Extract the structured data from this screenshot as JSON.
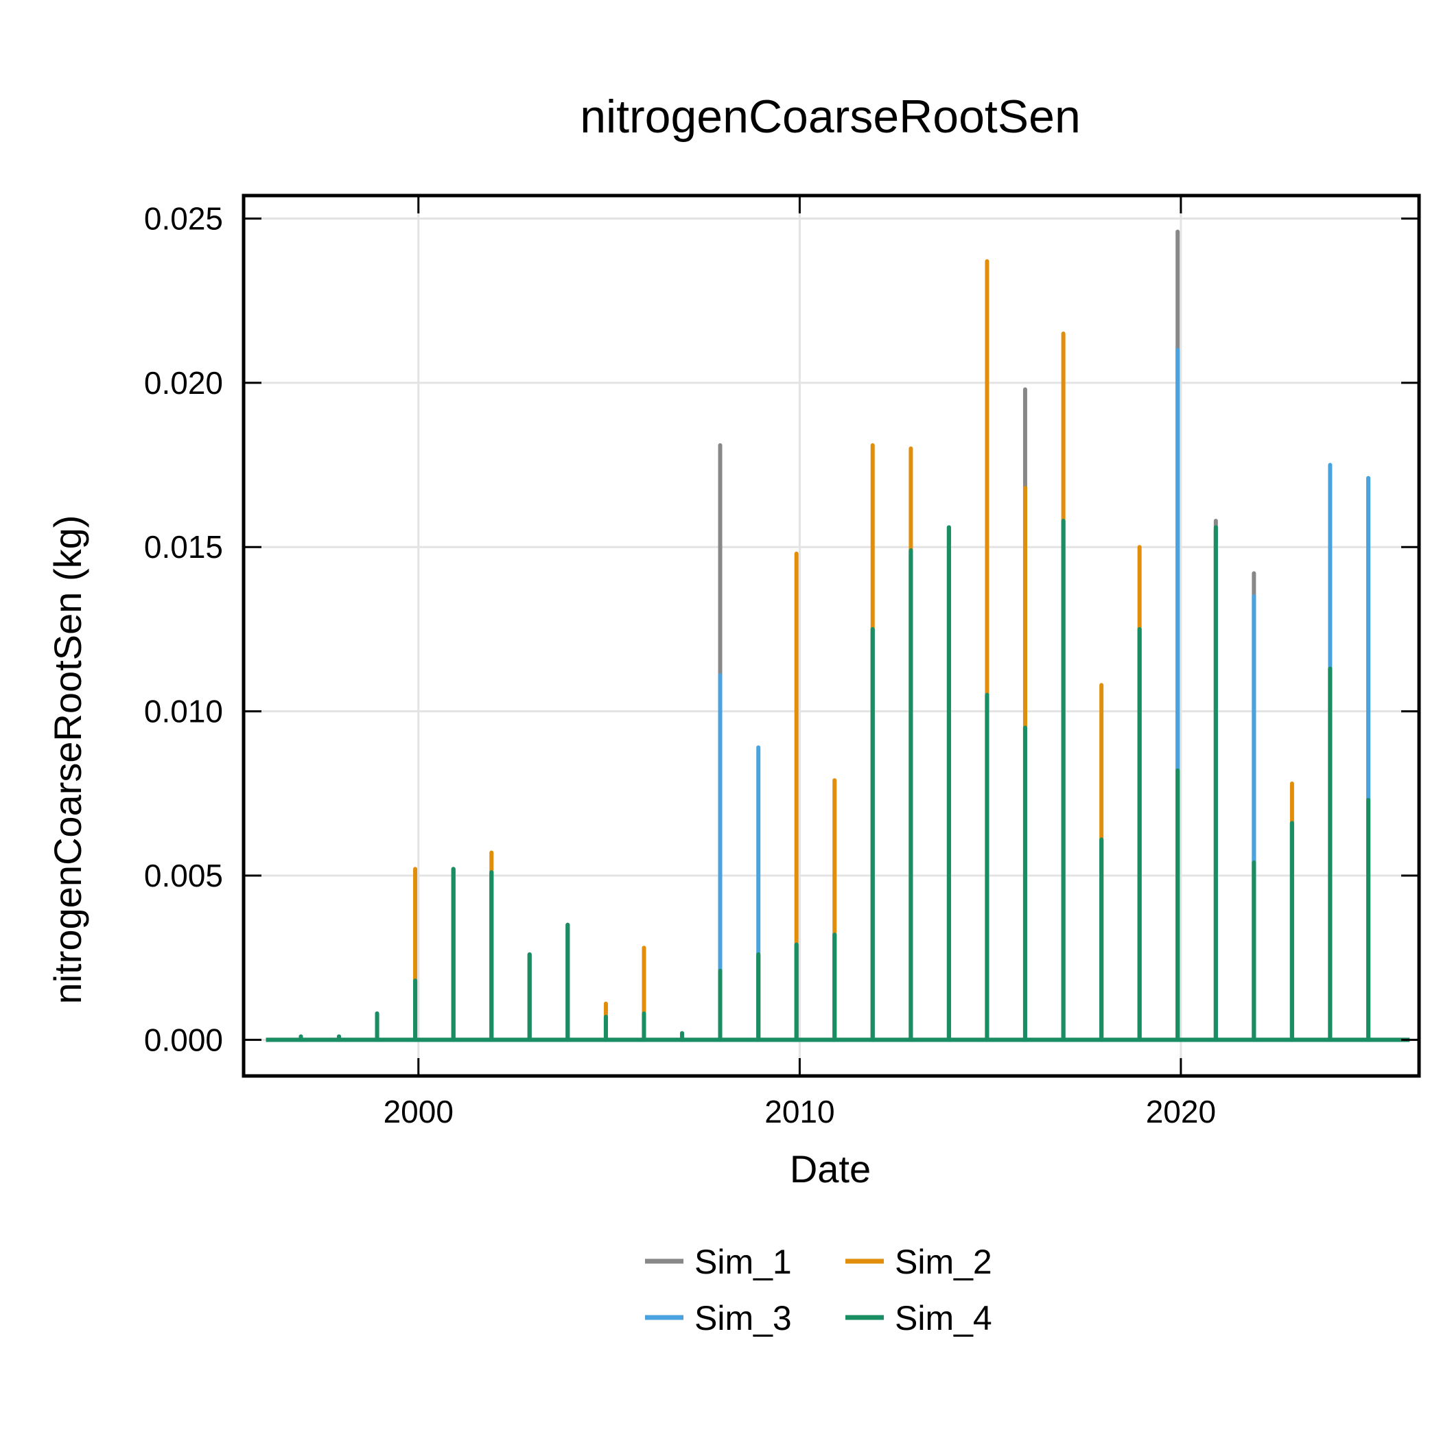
{
  "chart_data": {
    "type": "line",
    "title": "nitrogenCoarseRootSen",
    "xlabel": "Date",
    "ylabel": "nitrogenCoarseRootSen (kg)",
    "xlim": [
      "1995-06-01",
      "2026-04-01"
    ],
    "ylim": [
      -0.0011,
      0.0257
    ],
    "x_ticks": [
      "2000",
      "2010",
      "2020"
    ],
    "x_tick_dates": [
      "2000-01-01",
      "2010-01-01",
      "2020-01-01"
    ],
    "y_ticks": [
      "0.000",
      "0.005",
      "0.010",
      "0.015",
      "0.020",
      "0.025"
    ],
    "y_tick_values": [
      0,
      0.005,
      0.01,
      0.015,
      0.02,
      0.025
    ],
    "grid": true,
    "legend": {
      "position": "bottom",
      "columns": 2
    },
    "x_range": [
      "1996-01-01",
      "2025-12-31"
    ],
    "dates": [
      "1996-12-01",
      "1997-12-01",
      "1998-12-01",
      "1999-12-01",
      "2000-12-01",
      "2001-12-01",
      "2002-12-01",
      "2003-12-01",
      "2004-12-01",
      "2005-12-01",
      "2006-12-01",
      "2007-12-01",
      "2008-12-01",
      "2009-12-01",
      "2010-12-01",
      "2011-12-01",
      "2012-12-01",
      "2013-12-01",
      "2014-12-01",
      "2015-12-01",
      "2016-12-01",
      "2017-12-01",
      "2018-12-01",
      "2019-12-01",
      "2020-12-01",
      "2021-12-01",
      "2022-12-01",
      "2023-12-01",
      "2024-12-01"
    ],
    "series": [
      {
        "name": "Sim_1",
        "color": "#888888",
        "values": [
          0.0001,
          0.0001,
          0.0008,
          0.0018,
          0.0052,
          0.0051,
          0.0026,
          0.0035,
          0.0007,
          0.0008,
          0.0002,
          0.0181,
          0.0026,
          0.0029,
          0.0032,
          0.0125,
          0.0149,
          0.0156,
          0.0105,
          0.0198,
          0.0158,
          0.0061,
          0.0125,
          0.0246,
          0.0158,
          0.0142,
          0.0066,
          0.0113,
          0.0171
        ]
      },
      {
        "name": "Sim_2",
        "color": "#E08E0B",
        "values": [
          0.0001,
          0.0001,
          0.0008,
          0.0052,
          0.0052,
          0.0057,
          0.0026,
          0.0035,
          0.0011,
          0.0028,
          0.0002,
          0.0021,
          0.0026,
          0.0148,
          0.0079,
          0.0181,
          0.018,
          0.0156,
          0.0237,
          0.0168,
          0.0215,
          0.0108,
          0.015,
          0.0082,
          0.0155,
          0.0054,
          0.0078,
          0.0113,
          0.0073
        ]
      },
      {
        "name": "Sim_3",
        "color": "#4AA3DF",
        "values": [
          0.0001,
          0.0001,
          0.0008,
          0.0018,
          0.0052,
          0.0051,
          0.0026,
          0.0035,
          0.0007,
          0.0008,
          0.0002,
          0.0111,
          0.0089,
          0.0029,
          0.0032,
          0.0125,
          0.0149,
          0.0156,
          0.0105,
          0.0095,
          0.0158,
          0.0061,
          0.0125,
          0.021,
          0.0155,
          0.0135,
          0.0066,
          0.0175,
          0.0171
        ]
      },
      {
        "name": "Sim_4",
        "color": "#1A8E63",
        "values": [
          0.0001,
          0.0001,
          0.0008,
          0.0018,
          0.0052,
          0.0051,
          0.0026,
          0.0035,
          0.0007,
          0.0008,
          0.0002,
          0.0021,
          0.0026,
          0.0029,
          0.0032,
          0.0125,
          0.0149,
          0.0156,
          0.0105,
          0.0095,
          0.0158,
          0.0061,
          0.0125,
          0.0082,
          0.0156,
          0.0054,
          0.0066,
          0.0113,
          0.0073
        ]
      }
    ]
  }
}
